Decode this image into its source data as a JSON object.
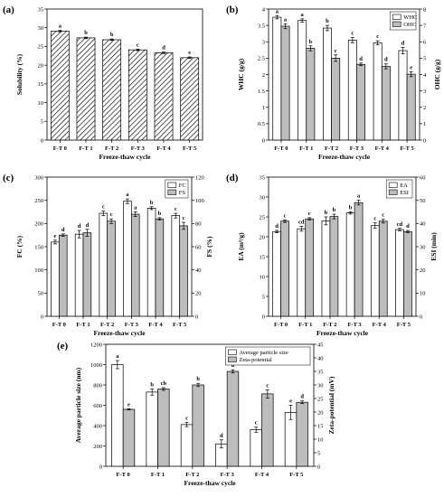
{
  "chart_data": [
    {
      "panel": "(a)",
      "type": "bar",
      "categories": [
        "F-T 0",
        "F-T 1",
        "F-T 2",
        "F-T 3",
        "F-T 4",
        "F-T 5"
      ],
      "xlabel": "Freeze-thaw cycle",
      "ylabel": "Solubility (%)",
      "ylim": [
        0,
        35
      ],
      "yticks": [
        0,
        5,
        10,
        15,
        20,
        25,
        30,
        35
      ],
      "series": [
        {
          "name": "",
          "axis": "left",
          "fill": "hatch",
          "values": [
            29.1,
            27.3,
            26.8,
            24.1,
            23.3,
            22.0
          ],
          "errors": [
            0.2,
            0.2,
            0.2,
            0.2,
            0.2,
            0.2
          ],
          "letters": [
            "a",
            "b",
            "b",
            "c",
            "d",
            "e"
          ]
        }
      ]
    },
    {
      "panel": "(b)",
      "type": "bar",
      "categories": [
        "F-T 0",
        "F-T 1",
        "F-T 2",
        "F-T 3",
        "F-T 4",
        "F-T 5"
      ],
      "xlabel": "Freeze-thaw cycle",
      "ylabel": "WHC (g/g)",
      "ylabel2": "OHC (g/g)",
      "ylim": [
        0,
        4.0
      ],
      "yticks": [
        0,
        0.5,
        1.0,
        1.5,
        2.0,
        2.5,
        3.0,
        3.5,
        4.0
      ],
      "ylim2": [
        0,
        8
      ],
      "yticks2": [
        0,
        1,
        2,
        3,
        4,
        5,
        6,
        7,
        8
      ],
      "legend": "top-right",
      "series": [
        {
          "name": "WHC",
          "axis": "left",
          "fill": "white",
          "values": [
            3.75,
            3.65,
            3.42,
            3.05,
            2.97,
            2.73
          ],
          "errors": [
            0.05,
            0.05,
            0.08,
            0.08,
            0.06,
            0.1
          ],
          "letters": [
            "a",
            "a",
            "b",
            "c",
            "c",
            "d"
          ]
        },
        {
          "name": "OHC",
          "axis": "right",
          "fill": "gray",
          "values": [
            6.95,
            5.6,
            5.0,
            4.62,
            4.5,
            4.02
          ],
          "errors": [
            0.15,
            0.15,
            0.2,
            0.08,
            0.15,
            0.15
          ],
          "letters": [
            "a",
            "b",
            "c",
            "d",
            "d",
            "e"
          ]
        }
      ]
    },
    {
      "panel": "(c)",
      "type": "bar",
      "categories": [
        "F-T 0",
        "F-T 1",
        "F-T 2",
        "F-T 3",
        "F-T 4",
        "F-T 5"
      ],
      "xlabel": "Freeze-thaw cycle",
      "ylabel": "FC (%)",
      "ylabel2": "FS (%)",
      "ylim": [
        0,
        300
      ],
      "yticks": [
        0,
        50,
        100,
        150,
        200,
        250,
        300
      ],
      "ylim2": [
        0,
        120
      ],
      "yticks2": [
        0,
        20,
        40,
        60,
        80,
        100,
        120
      ],
      "legend": "top-right",
      "series": [
        {
          "name": "FC",
          "axis": "left",
          "fill": "white",
          "values": [
            160,
            177,
            222,
            248,
            233,
            217
          ],
          "errors": [
            4,
            8,
            5,
            5,
            3,
            5
          ],
          "letters": [
            "e",
            "d",
            "c",
            "a",
            "b",
            "c"
          ]
        },
        {
          "name": "FS",
          "axis": "right",
          "fill": "gray",
          "values": [
            70,
            72,
            82,
            88,
            84,
            78
          ],
          "errors": [
            1,
            3,
            2,
            2,
            1,
            3
          ],
          "letters": [
            "d",
            "d",
            "c",
            "a",
            "b",
            "c"
          ]
        }
      ]
    },
    {
      "panel": "(d)",
      "type": "bar",
      "categories": [
        "F-T 0",
        "F-T 1",
        "F-T 2",
        "F-T 3",
        "F-T 4",
        "F-T 5"
      ],
      "xlabel": "Freeze-thaw cycle",
      "ylabel": "EA (m²/g)",
      "ylabel2": "ESI (min)",
      "ylim": [
        0,
        35
      ],
      "yticks": [
        0,
        5,
        10,
        15,
        20,
        25,
        30,
        35
      ],
      "ylim2": [
        0,
        60
      ],
      "yticks2": [
        0,
        10,
        20,
        30,
        40,
        50,
        60
      ],
      "legend": "top-right",
      "series": [
        {
          "name": "EA",
          "axis": "left",
          "fill": "white",
          "values": [
            21.3,
            22.0,
            24.0,
            26.0,
            22.8,
            21.8
          ],
          "errors": [
            0.3,
            0.6,
            1.0,
            0.3,
            0.7,
            0.3
          ],
          "letters": [
            "d",
            "cd",
            "b",
            "b",
            "c",
            "cd"
          ]
        },
        {
          "name": "ESI",
          "axis": "right",
          "fill": "gray",
          "values": [
            41,
            42,
            43,
            49,
            41,
            36.5
          ],
          "errors": [
            0.5,
            0.5,
            1.0,
            1.0,
            0.8,
            0.5
          ],
          "letters": [
            "c",
            "c",
            "b",
            "a",
            "c",
            "d"
          ]
        }
      ]
    },
    {
      "panel": "(e)",
      "type": "bar",
      "categories": [
        "F-T 0",
        "F-T 1",
        "F-T 2",
        "F-T 3",
        "F-T 4",
        "F-T 5"
      ],
      "xlabel": "Freeze-thaw cycle",
      "ylabel": "Average particle size (nm)",
      "ylabel2": "Zeta-potential (mV)",
      "ylim": [
        0,
        1200
      ],
      "yticks": [
        0,
        200,
        400,
        600,
        800,
        1000,
        1200
      ],
      "ylim2": [
        0,
        45
      ],
      "yticks2": [
        0,
        5,
        10,
        15,
        20,
        25,
        30,
        35,
        40,
        45
      ],
      "legend": "top-right",
      "series": [
        {
          "name": "Average particle size",
          "axis": "left",
          "fill": "white",
          "values": [
            1000,
            730,
            410,
            220,
            360,
            530
          ],
          "errors": [
            40,
            30,
            20,
            40,
            25,
            70
          ],
          "letters": [
            "a",
            "b",
            "c",
            "d",
            "c",
            "e"
          ]
        },
        {
          "name": "Zeta-potential",
          "axis": "right",
          "fill": "gray",
          "values": [
            21,
            28.5,
            30,
            35,
            26.7,
            23.6
          ],
          "errors": [
            0.2,
            0.5,
            0.6,
            0.6,
            1.5,
            0.5
          ],
          "letters": [
            "e",
            "cb",
            "b",
            "a",
            "c",
            "d"
          ]
        }
      ]
    }
  ]
}
